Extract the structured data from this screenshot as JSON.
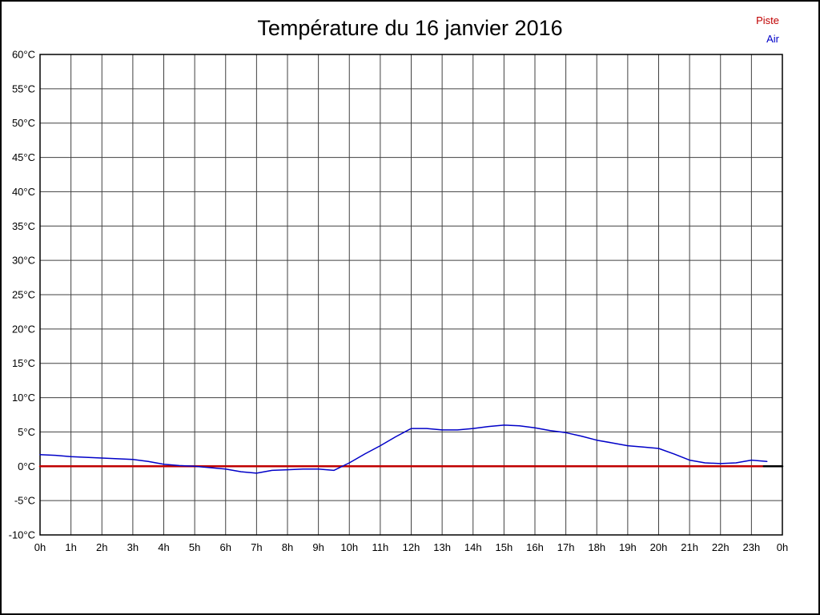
{
  "chart_data": {
    "type": "line",
    "title": "Température du 16 janvier 2016",
    "xlim": [
      0,
      24
    ],
    "ylim": [
      -10,
      60
    ],
    "y_step": 5,
    "grid": true,
    "grid_color": "#404040",
    "frame_color": "#000000",
    "legend_position": "top-right",
    "x_ticks": [
      "0h",
      "1h",
      "2h",
      "3h",
      "4h",
      "5h",
      "6h",
      "7h",
      "8h",
      "9h",
      "10h",
      "11h",
      "12h",
      "13h",
      "14h",
      "15h",
      "16h",
      "17h",
      "18h",
      "19h",
      "20h",
      "21h",
      "22h",
      "23h",
      "0h"
    ],
    "y_ticks": [
      "60°C",
      "55°C",
      "50°C",
      "45°C",
      "40°C",
      "35°C",
      "30°C",
      "25°C",
      "20°C",
      "15°C",
      "10°C",
      "5°C",
      "0°C",
      "-5°C",
      "-10°C"
    ],
    "legend": [
      {
        "label": "Piste",
        "color": "#c00000"
      },
      {
        "label": "Air",
        "color": "#0000c8"
      }
    ],
    "series": [
      {
        "name": "Piste",
        "color": "#c00000",
        "width": 2.5,
        "x": [
          0,
          23.4
        ],
        "y": [
          0,
          0
        ]
      },
      {
        "name": "Air",
        "color": "#0000c8",
        "width": 1.5,
        "x": [
          0,
          0.5,
          1,
          1.5,
          2,
          2.5,
          3,
          3.5,
          4,
          4.5,
          5,
          5.5,
          6,
          6.5,
          7,
          7.5,
          8,
          8.5,
          9,
          9.5,
          10,
          10.5,
          11,
          11.5,
          12,
          12.5,
          13,
          13.5,
          14,
          14.5,
          15,
          15.5,
          16,
          16.5,
          17,
          17.5,
          18,
          18.5,
          19,
          19.5,
          20,
          20.5,
          21,
          21.5,
          22,
          22.5,
          23,
          23.5
        ],
        "y": [
          1.7,
          1.6,
          1.4,
          1.3,
          1.2,
          1.1,
          1.0,
          0.7,
          0.3,
          0.1,
          0.0,
          -0.2,
          -0.4,
          -0.8,
          -1.0,
          -0.6,
          -0.5,
          -0.4,
          -0.4,
          -0.6,
          0.5,
          1.8,
          3.0,
          4.3,
          5.5,
          5.5,
          5.3,
          5.3,
          5.5,
          5.8,
          6.0,
          5.9,
          5.6,
          5.2,
          4.9,
          4.4,
          3.8,
          3.4,
          3.0,
          2.8,
          2.6,
          1.8,
          0.9,
          0.5,
          0.4,
          0.5,
          0.9,
          0.7
        ]
      },
      {
        "name": "axis-end",
        "color": "#000000",
        "width": 2.5,
        "x": [
          23.4,
          24
        ],
        "y": [
          0,
          0
        ]
      }
    ]
  }
}
